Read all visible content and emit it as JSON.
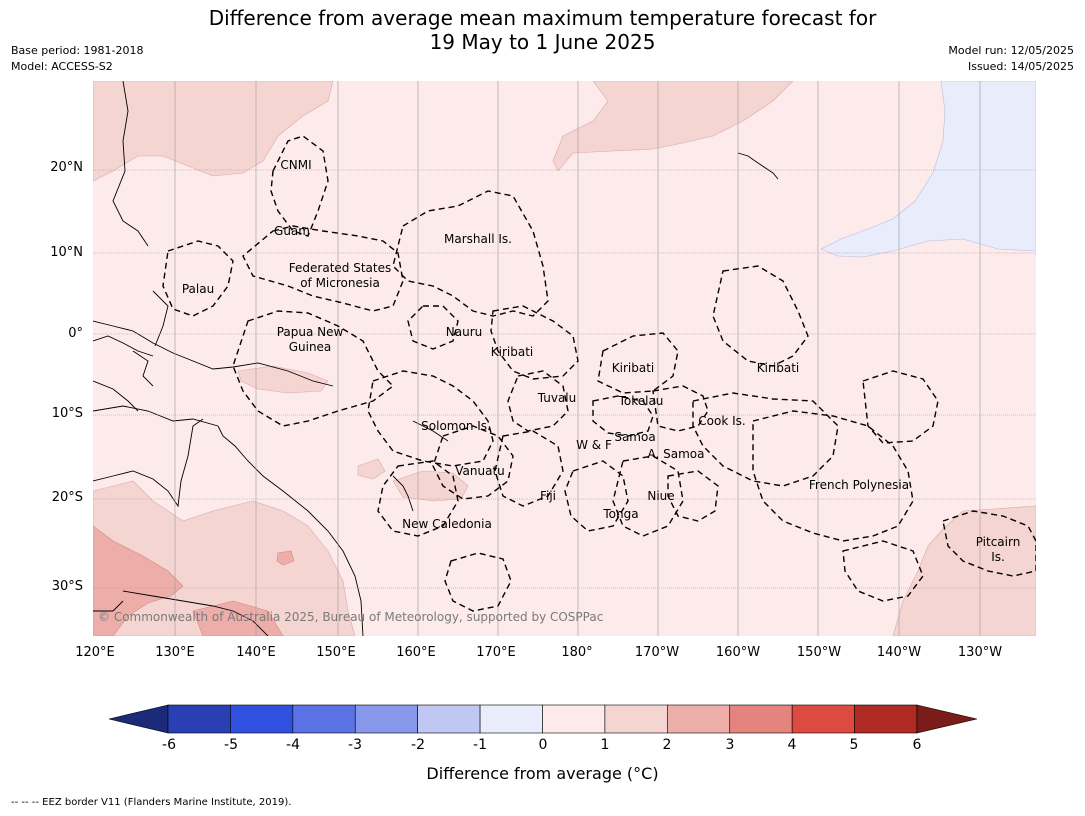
{
  "header": {
    "title_line1": "Difference from average mean maximum temperature forecast for",
    "title_line2": "19 May to 1 June 2025",
    "base_period": "Base period: 1981-2018",
    "model": "Model: ACCESS-S2",
    "model_run": "Model run: 12/05/2025",
    "issued": "Issued: 14/05/2025"
  },
  "map": {
    "lon_range": [
      120,
      235
    ],
    "lat_range": [
      -36,
      31
    ],
    "lat_ticks": [
      "20°N",
      "10°N",
      "0°",
      "10°S",
      "20°S",
      "30°S"
    ],
    "lon_ticks": [
      "120°E",
      "130°E",
      "140°E",
      "150°E",
      "160°E",
      "170°E",
      "180°",
      "170°W",
      "160°W",
      "150°W",
      "140°W",
      "130°W"
    ],
    "grid": true,
    "eez_labels": [
      {
        "line1": "CNMI",
        "line2": ""
      },
      {
        "line1": "Guam",
        "line2": ""
      },
      {
        "line1": "Marshall Is.",
        "line2": ""
      },
      {
        "line1": "Federated States",
        "line2": "of Micronesia"
      },
      {
        "line1": "Palau",
        "line2": ""
      },
      {
        "line1": "Papua New",
        "line2": "Guinea"
      },
      {
        "line1": "Nauru",
        "line2": ""
      },
      {
        "line1": "Kiribati",
        "line2": ""
      },
      {
        "line1": "Kiribati",
        "line2": ""
      },
      {
        "line1": "Kiribati",
        "line2": ""
      },
      {
        "line1": "Tuvalu",
        "line2": ""
      },
      {
        "line1": "Tokelau",
        "line2": ""
      },
      {
        "line1": "Cook Is.",
        "line2": ""
      },
      {
        "line1": "Solomon Is.",
        "line2": ""
      },
      {
        "line1": "Samoa",
        "line2": ""
      },
      {
        "line1": "W & F",
        "line2": ""
      },
      {
        "line1": "A. Samoa",
        "line2": ""
      },
      {
        "line1": "Vanuatu",
        "line2": ""
      },
      {
        "line1": "Fiji",
        "line2": ""
      },
      {
        "line1": "Niue",
        "line2": ""
      },
      {
        "line1": "French Polynesia",
        "line2": ""
      },
      {
        "line1": "Tonga",
        "line2": ""
      },
      {
        "line1": "New Caledonia",
        "line2": ""
      },
      {
        "line1": "Pitcairn",
        "line2": "Is."
      }
    ],
    "copyright": "© Commonwealth of Australia 2025, Bureau of Meteorology, supported by COSPPac"
  },
  "colorbar": {
    "ticks": [
      "-6",
      "-5",
      "-4",
      "-3",
      "-2",
      "-1",
      "0",
      "1",
      "2",
      "3",
      "4",
      "5",
      "6"
    ],
    "colors": [
      "#2a3fb3",
      "#3050e0",
      "#5a72e3",
      "#8797ea",
      "#bfc7f2",
      "#e8ecfb",
      "#fcebea",
      "#f5d5d2",
      "#edaeaa",
      "#e5837e",
      "#dc4a40",
      "#ae2a22"
    ],
    "under_color": "#1c2a7a",
    "over_color": "#7a1c18",
    "label": "Difference from average (°C)"
  },
  "footnote": "--  --  -- EEZ border V11 (Flanders Marine Institute, 2019)."
}
